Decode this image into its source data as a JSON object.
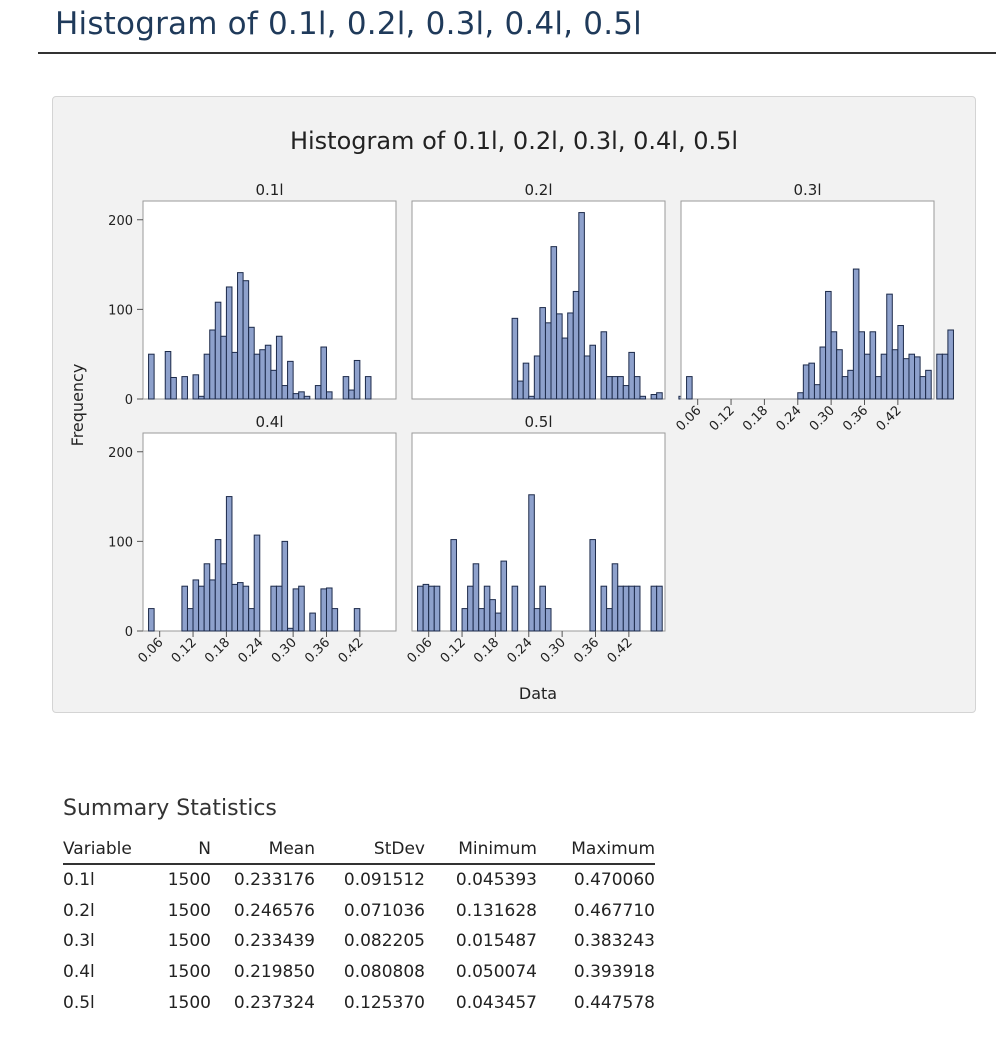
{
  "page": {
    "title": "Histogram of 0.1l, 0.2l, 0.3l, 0.4l, 0.5l"
  },
  "colors": {
    "bar_fill": "#8ea1cc",
    "bar_edge": "#1c2a4a",
    "panel_bg": "#f2f2f2",
    "frame": "#9a9a9a"
  },
  "chart_data": {
    "type": "bar",
    "title": "Histogram of 0.1l, 0.2l, 0.3l, 0.4l, 0.5l",
    "xlabel": "Data",
    "ylabel": "Frequency",
    "xlim": [
      0.03,
      0.485
    ],
    "ylim": [
      0,
      212
    ],
    "yticks": [
      0,
      100,
      200
    ],
    "xticks": [
      0.06,
      0.12,
      0.18,
      0.24,
      0.3,
      0.36,
      0.42
    ],
    "xtick_labels": [
      "0.06",
      "0.12",
      "0.18",
      "0.24",
      "0.30",
      "0.36",
      "0.42"
    ],
    "bin_start": 0.04,
    "bin_width": 0.01,
    "grid": false,
    "panels": [
      {
        "name": "0.1l",
        "counts": [
          50,
          0,
          0,
          53,
          24,
          0,
          25,
          0,
          27,
          3,
          50,
          77,
          108,
          70,
          125,
          52,
          141,
          132,
          80,
          50,
          55,
          60,
          32,
          70,
          15,
          42,
          6,
          8,
          3,
          0,
          15,
          58,
          8,
          0,
          0,
          25,
          10,
          43,
          0,
          25
        ]
      },
      {
        "name": "0.2l",
        "counts": [
          0,
          0,
          0,
          0,
          0,
          0,
          0,
          0,
          0,
          0,
          0,
          0,
          0,
          0,
          0,
          0,
          0,
          90,
          20,
          40,
          3,
          48,
          102,
          85,
          170,
          95,
          68,
          96,
          120,
          208,
          48,
          60,
          0,
          75,
          25,
          25,
          25,
          15,
          52,
          25,
          3,
          0,
          5,
          7,
          0,
          0,
          0,
          3,
          25
        ]
      },
      {
        "name": "0.3l",
        "counts": [
          25,
          0,
          0,
          0,
          0,
          0,
          0,
          0,
          0,
          0,
          0,
          0,
          0,
          0,
          0,
          0,
          0,
          0,
          0,
          0,
          7,
          38,
          40,
          16,
          58,
          120,
          75,
          55,
          25,
          32,
          145,
          75,
          50,
          75,
          25,
          50,
          117,
          55,
          82,
          45,
          50,
          47,
          25,
          32,
          0,
          50,
          50,
          77
        ]
      },
      {
        "name": "0.4l",
        "counts": [
          25,
          0,
          0,
          0,
          0,
          0,
          50,
          25,
          57,
          50,
          75,
          57,
          102,
          75,
          150,
          52,
          54,
          50,
          25,
          107,
          0,
          0,
          50,
          50,
          100,
          3,
          47,
          50,
          0,
          20,
          0,
          47,
          48,
          25,
          0,
          0,
          0,
          25
        ]
      },
      {
        "name": "0.5l",
        "counts": [
          50,
          52,
          50,
          50,
          0,
          0,
          102,
          0,
          25,
          50,
          75,
          25,
          50,
          35,
          20,
          78,
          0,
          50,
          0,
          0,
          152,
          25,
          50,
          25,
          0,
          0,
          0,
          0,
          0,
          0,
          0,
          102,
          0,
          50,
          25,
          75,
          50,
          50,
          50,
          50,
          0,
          0,
          50,
          50
        ]
      }
    ]
  },
  "stats": {
    "title": "Summary Statistics",
    "columns": [
      "Variable",
      "N",
      "Mean",
      "StDev",
      "Minimum",
      "Maximum"
    ],
    "rows": [
      [
        "0.1l",
        "1500",
        "0.233176",
        "0.091512",
        "0.045393",
        "0.470060"
      ],
      [
        "0.2l",
        "1500",
        "0.246576",
        "0.071036",
        "0.131628",
        "0.467710"
      ],
      [
        "0.3l",
        "1500",
        "0.233439",
        "0.082205",
        "0.015487",
        "0.383243"
      ],
      [
        "0.4l",
        "1500",
        "0.219850",
        "0.080808",
        "0.050074",
        "0.393918"
      ],
      [
        "0.5l",
        "1500",
        "0.237324",
        "0.125370",
        "0.043457",
        "0.447578"
      ]
    ]
  }
}
